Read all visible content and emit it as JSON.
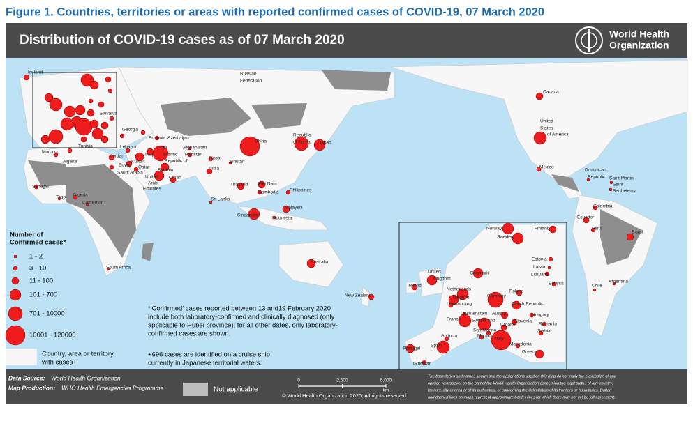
{
  "figure_caption": "Figure 1. Countries, territories or areas with reported confirmed cases of COVID-19, 07 March 2020",
  "header": {
    "title": "Distribution of COVID-19 cases as of 07 March 2020",
    "org": [
      "World Health",
      "Organization"
    ]
  },
  "map_labels": [
    "Iceland",
    "Russian",
    "Federation",
    "Canada",
    "United",
    "States",
    "of America",
    "Mexico",
    "Dominican",
    "Republic",
    "Saint Martin",
    "Saint",
    "Barthelemy",
    "Colombia",
    "Ecuador",
    "Peru",
    "Brazil",
    "Chile",
    "Argentina",
    "China",
    "Republic",
    "of Korea",
    "Japan",
    "Nepal",
    "Bhutan",
    "India",
    "Thailand",
    "Viet Nam",
    "Cambodia",
    "Philippines",
    "Sri Lanka",
    "Malaysia",
    "Singapore",
    "Indonesia",
    "Australia",
    "New Zealand",
    "Georgia",
    "Armenia",
    "Azerbaijan",
    "Afghanistan",
    "Pakistan",
    "Iran",
    "Islamic",
    "Republic of",
    "Iraq",
    "Kuwait",
    "Qatar",
    "Bahrain",
    "Oman",
    "United",
    "Arab",
    "Emirates",
    "Saudi Arabia",
    "Jordan",
    "Lebanon",
    "Egypt",
    "Tunisia",
    "Morocco",
    "Algeria",
    "Senegal",
    "Togo",
    "Nigeria",
    "Cameroon",
    "South Africa",
    "Slovakia"
  ],
  "inset_labels": [
    "Norway",
    "Finland",
    "Sweden",
    "Estonia",
    "Latvia",
    "United",
    "Kingdom",
    "Denmark",
    "Lithuania",
    "Belarus",
    "Ireland",
    "Netherlands",
    "Belgium",
    "Luxembourg",
    "Poland",
    "Germany",
    "Czech Republic",
    "France",
    "Liechtenstein",
    "Switzerland",
    "Austria",
    "Hungary",
    "Slovenia",
    "Croatia",
    "Romania",
    "San Marino",
    "Monaco",
    "Andorra",
    "Serbia",
    "Italy",
    "Macedonia",
    "Greece",
    "Portugal",
    "Spain",
    "Gibraltar"
  ],
  "legend": {
    "title": [
      "Number of",
      "Confirmed cases*"
    ],
    "classes": [
      "1 - 2",
      "3 - 10",
      "11 - 100",
      "101 - 700",
      "701 - 10000",
      "10001 - 120000"
    ],
    "with_cases": [
      "Country, area or territory",
      "with cases+"
    ],
    "not_applicable": "Not applicable"
  },
  "notes": {
    "confirmed": [
      "*'Confirmed' cases reported between 13 and19 February 2020",
      "include both laboratory-confirmed and clinically diagnosed (only",
      "applicable to Hubei province); for all other dates, only laboratory-",
      "confirmed cases are shown."
    ],
    "cruise": [
      "+696 cases are identified on a cruise ship",
      "currently in Japanese territorial waters."
    ]
  },
  "footer": {
    "data_source_label": "Data Source:",
    "data_source": "World Health Organization",
    "production_label": "Map Production:",
    "production": "WHO Health Emergencies Programme",
    "copyright": "© World Health Organization 2020, All rights reserved.",
    "disclaimer": [
      "The boundaries and names shown and the designations used on this map do not imply the expression of any",
      "opinion whatsoever on the part of the World Health Organization concerning the legal status of any country,",
      "territory, city or area or of its authorities, or concerning the delimitation of its frontiers or boundaries. Dotted",
      "and dashed lines on maps represent approximate border lines for which there may not yet be full agreement."
    ]
  },
  "scale": {
    "ticks": [
      0,
      {
        "value": 2500,
        "label": "2,500"
      },
      {
        "value": 5000,
        "label": "5,000"
      }
    ],
    "unit": "km"
  }
}
